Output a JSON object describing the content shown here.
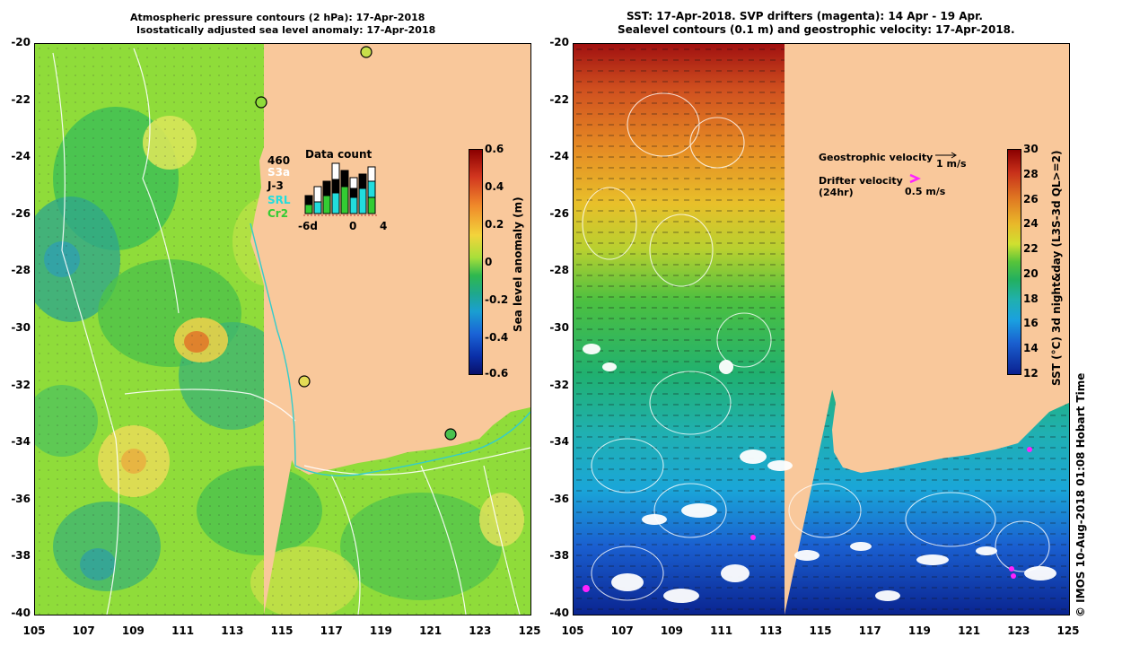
{
  "left_panel": {
    "title_line1": "Atmospheric pressure contours (2 hPa): 17-Apr-2018",
    "title_line2": "Isostatically adjusted sea level anomaly: 17-Apr-2018",
    "colorbar_label": "Sea level anomaly (m)",
    "colorbar_ticks": [
      "0.6",
      "0.4",
      "0.2",
      "0",
      "-0.2",
      "-0.4",
      "-0.6"
    ],
    "data_count": {
      "title": "Data count",
      "total": "460",
      "legend": [
        {
          "label": "S3a",
          "color": "#ffffff"
        },
        {
          "label": "J-3",
          "color": "#000000"
        },
        {
          "label": "SRL",
          "color": "#22dddd"
        },
        {
          "label": "Cr2",
          "color": "#33cc33"
        }
      ],
      "ticks": [
        "-6d",
        "0",
        "4"
      ]
    }
  },
  "right_panel": {
    "title_line1": "SST: 17-Apr-2018. SVP drifters (magenta): 14 Apr - 19 Apr.",
    "title_line2": "Sealevel contours (0.1 m) and geostrophic velocity: 17-Apr-2018.",
    "colorbar_label": "SST (°C) 3d night&day (L3S-3d QL>=2)",
    "colorbar_ticks": [
      "30",
      "28",
      "26",
      "24",
      "22",
      "20",
      "18",
      "16",
      "14",
      "12"
    ],
    "geostrophic_label": "Geostrophic velocity",
    "geostrophic_scale": "1 m/s",
    "drifter_label": "Drifter velocity",
    "drifter_sub": "(24hr)",
    "drifter_scale": "0.5 m/s"
  },
  "axes": {
    "y_labels": [
      "-20",
      "-22",
      "-24",
      "-26",
      "-28",
      "-30",
      "-32",
      "-34",
      "-36",
      "-38",
      "-40"
    ],
    "x_labels": [
      "105",
      "107",
      "109",
      "111",
      "113",
      "115",
      "117",
      "119",
      "121",
      "123",
      "125"
    ]
  },
  "credit": "© IMOS 10-Aug-2018 01:08 Hobart Time",
  "colors": {
    "land": "#f9c89b",
    "drifter": "#ff22ff"
  }
}
